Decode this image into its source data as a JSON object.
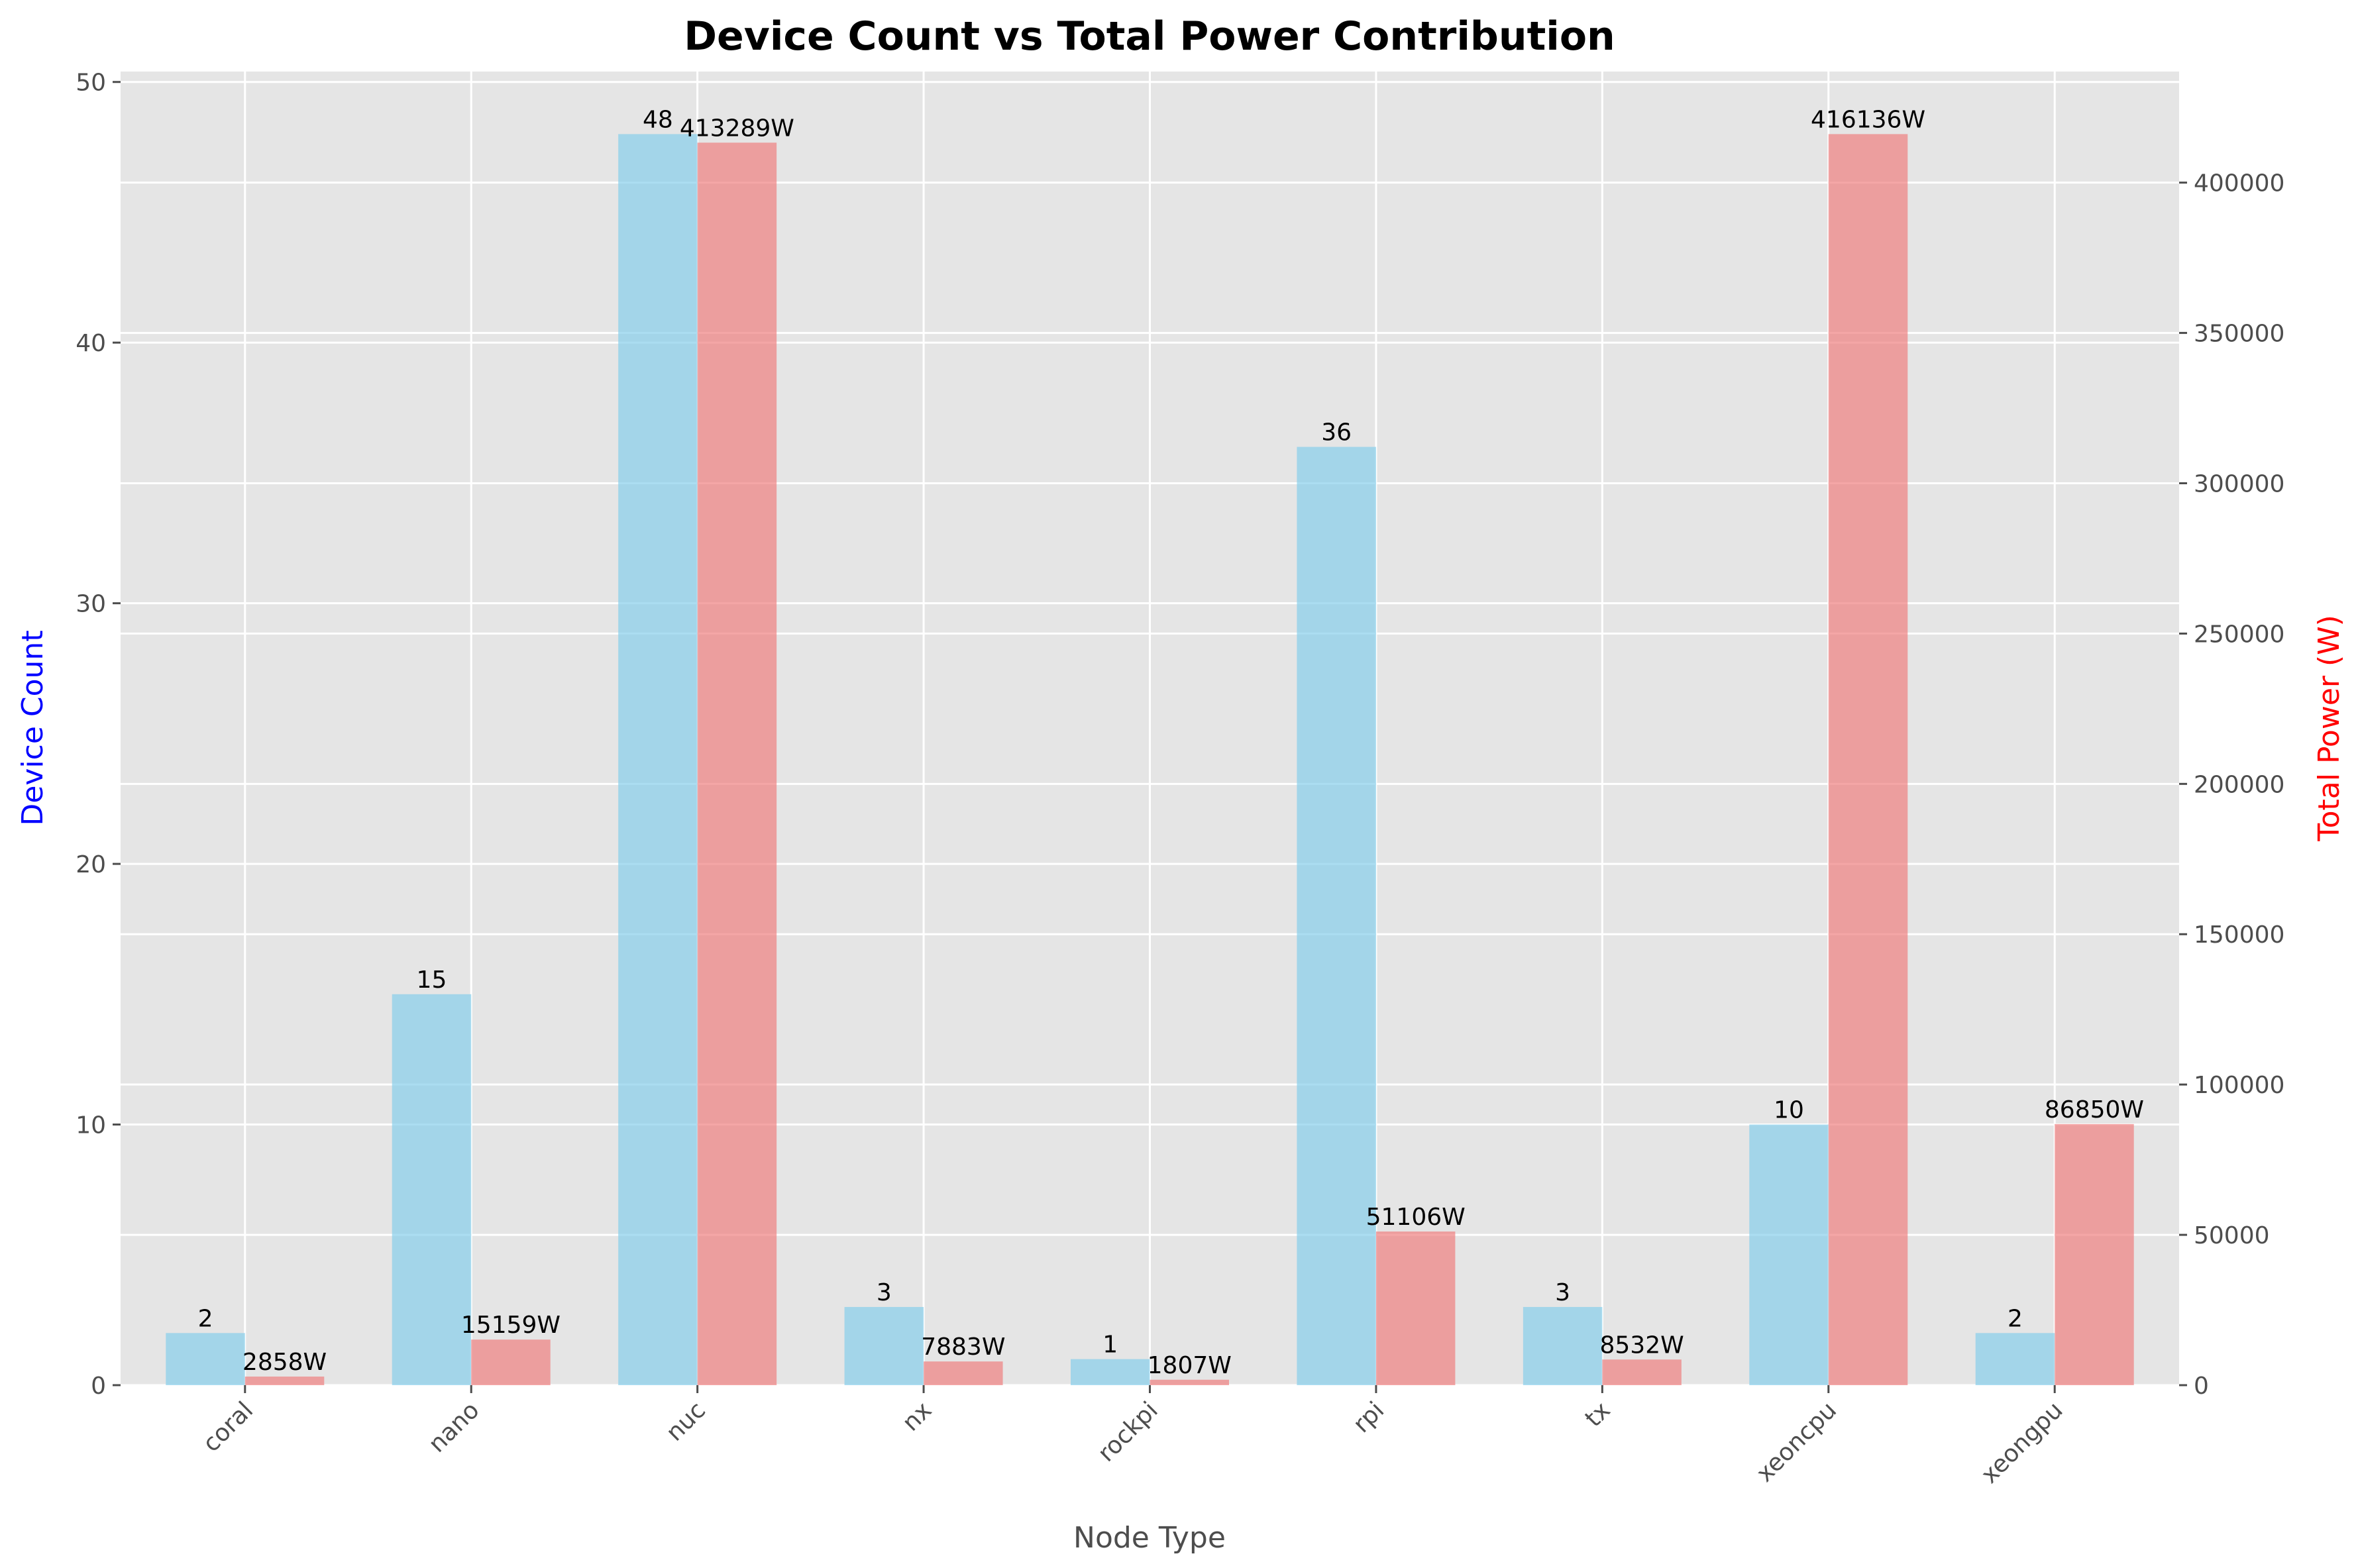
{
  "chart_data": {
    "type": "bar",
    "title": "Device Count vs Total Power Contribution",
    "xlabel": "Node Type",
    "ylabel_left": "Device Count",
    "ylabel_right": "Total Power (W)",
    "categories": [
      "coral",
      "nano",
      "nuc",
      "nx",
      "rockpi",
      "rpi",
      "tx",
      "xeoncpu",
      "xeongpu"
    ],
    "series": [
      {
        "name": "",
        "axis": "left",
        "color": "#87CEEB",
        "values": [
          2,
          15,
          48,
          3,
          1,
          36,
          3,
          10,
          2
        ],
        "labels": [
          "2",
          "15",
          "48",
          "3",
          "1",
          "36",
          "3",
          "10",
          "2"
        ]
      },
      {
        "name": "",
        "axis": "right",
        "color": "#F08080",
        "values": [
          2858,
          15159,
          413289,
          7883,
          1807,
          51106,
          8532,
          416136,
          86850
        ],
        "labels": [
          "2858W",
          "15159W",
          "413289W",
          "7883W",
          "1807W",
          "51106W",
          "8532W",
          "416136W",
          "86850W"
        ]
      }
    ],
    "ylim_left": [
      0,
      50.4
    ],
    "ylim_right": [
      0,
      436943
    ],
    "yticks_left": [
      "0",
      "10",
      "20",
      "30",
      "40",
      "50"
    ],
    "yticks_right": [
      "0",
      "50000",
      "100000",
      "150000",
      "200000",
      "250000",
      "300000",
      "350000",
      "400000"
    ],
    "grid": true,
    "colors": {
      "left_axis_label": "#0000FF",
      "right_axis_label": "#FF0000",
      "plot_bg": "#E5E5E5",
      "grid": "#FFFFFF"
    }
  }
}
